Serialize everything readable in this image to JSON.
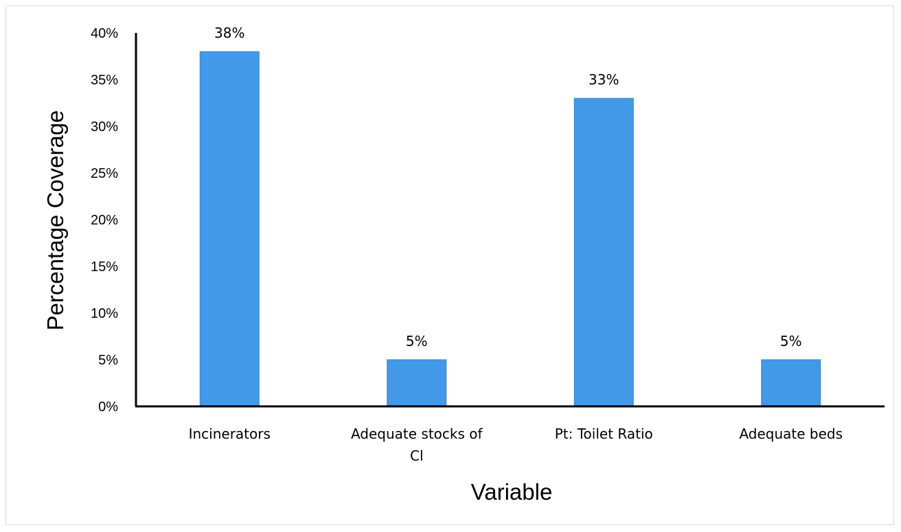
{
  "chart_data": {
    "type": "bar",
    "categories": [
      "Incinerators",
      "Adequate stocks of Cl",
      "Pt: Toilet Ratio",
      "Adequate beds"
    ],
    "category_lines": [
      [
        "Incinerators"
      ],
      [
        "Adequate stocks of",
        "Cl"
      ],
      [
        "Pt: Toilet Ratio"
      ],
      [
        "Adequate beds"
      ]
    ],
    "values": [
      38,
      5,
      33,
      5
    ],
    "data_labels": [
      "38%",
      "5%",
      "33%",
      "5%"
    ],
    "y_ticks": [
      "0%",
      "5%",
      "10%",
      "15%",
      "20%",
      "25%",
      "30%",
      "35%",
      "40%"
    ],
    "ylim": [
      0,
      40
    ],
    "xlabel": "Variable",
    "ylabel": "Percentage Coverage",
    "grid": false,
    "legend": "none",
    "bar_color": "#4199e8",
    "bar_edge_color": "#2f86d6"
  }
}
